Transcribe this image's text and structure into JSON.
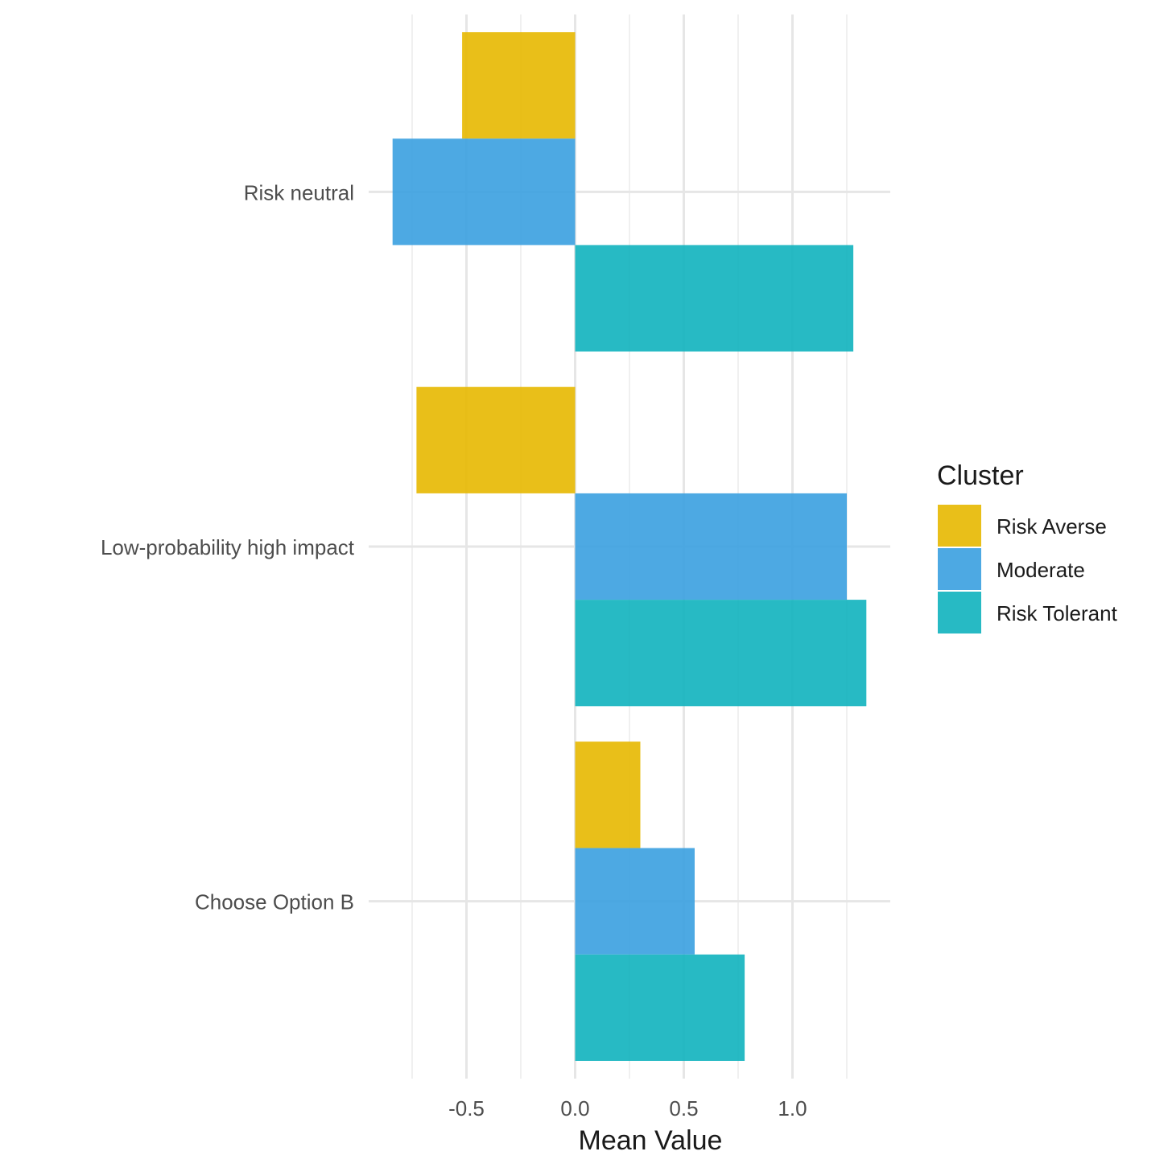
{
  "chart_data": {
    "type": "bar",
    "orientation": "horizontal",
    "title": "",
    "xlabel": "Mean Value",
    "ylabel": "",
    "categories": [
      "Risk neutral",
      "Low-probability high impact",
      "Choose Option B"
    ],
    "series": [
      {
        "name": "Risk Averse",
        "color": "#E7B800",
        "values": [
          -0.52,
          -0.73,
          0.3
        ]
      },
      {
        "name": "Moderate",
        "color": "#3AA0E0",
        "values": [
          -0.84,
          1.25,
          0.55
        ]
      },
      {
        "name": "Risk Tolerant",
        "color": "#0FB3BE",
        "values": [
          1.28,
          1.34,
          0.78
        ]
      }
    ],
    "xlim": [
      -0.95,
      1.45
    ],
    "xticks": [
      -0.5,
      0.0,
      0.5,
      1.0
    ],
    "xtick_labels": [
      "-0.5",
      "0.0",
      "0.5",
      "1.0"
    ],
    "grid": true,
    "legend": {
      "title": "Cluster",
      "position": "right"
    }
  }
}
